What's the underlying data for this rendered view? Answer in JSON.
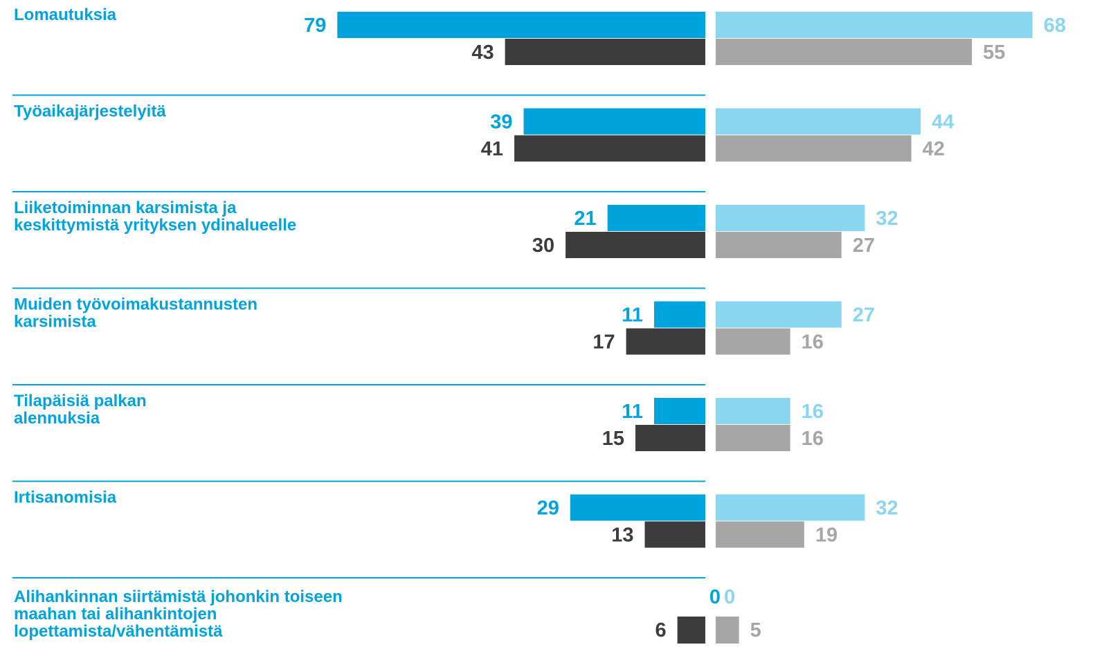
{
  "colors": {
    "left_top": "#00a3dc",
    "left_bottom": "#3c3c3e",
    "right_top": "#8ad5ef",
    "right_bottom": "#a6a6a6",
    "divider": "#00a3dc",
    "category_text": "#00a3dc"
  },
  "chart_data": {
    "type": "bar",
    "orientation": "horizontal-diverging",
    "categories": [
      "Lomautuksia",
      "Työaikajärjestelyitä",
      "Liiketoiminnan karsimista ja keskittymistä yrityksen ydinalueelle",
      "Muiden työvoimakustannusten karsimista",
      "Tilapäisiä palkan alennuksia",
      "Irtisanomisia",
      "Alihankinnan siirtämistä johonkin toiseen maahan tai alihankintojen lopettamista/vähentämistä"
    ],
    "category_lines": [
      [
        "Lomautuksia"
      ],
      [
        "Työaikajärjestelyitä"
      ],
      [
        "Liiketoiminnan karsimista ja",
        "keskittymistä yrityksen ydinalueelle"
      ],
      [
        "Muiden työvoimakustannusten",
        "karsimista"
      ],
      [
        "Tilapäisiä palkan",
        "alennuksia"
      ],
      [
        "Irtisanomisia"
      ],
      [
        "Alihankinnan siirtämistä johonkin toiseen",
        "maahan tai alihankintojen",
        "lopettamista/vähentämistä"
      ]
    ],
    "series": [
      {
        "side": "left",
        "row": "top",
        "values": [
          79,
          39,
          21,
          11,
          11,
          29,
          0
        ]
      },
      {
        "side": "left",
        "row": "bottom",
        "values": [
          43,
          41,
          30,
          17,
          15,
          13,
          6
        ]
      },
      {
        "side": "right",
        "row": "top",
        "values": [
          68,
          44,
          32,
          27,
          16,
          32,
          0
        ]
      },
      {
        "side": "right",
        "row": "bottom",
        "values": [
          55,
          42,
          27,
          16,
          16,
          19,
          5
        ]
      }
    ],
    "title": "",
    "xlabel": "",
    "ylabel": "",
    "xlim": [
      0,
      79
    ],
    "legend": "none",
    "grid": false
  }
}
